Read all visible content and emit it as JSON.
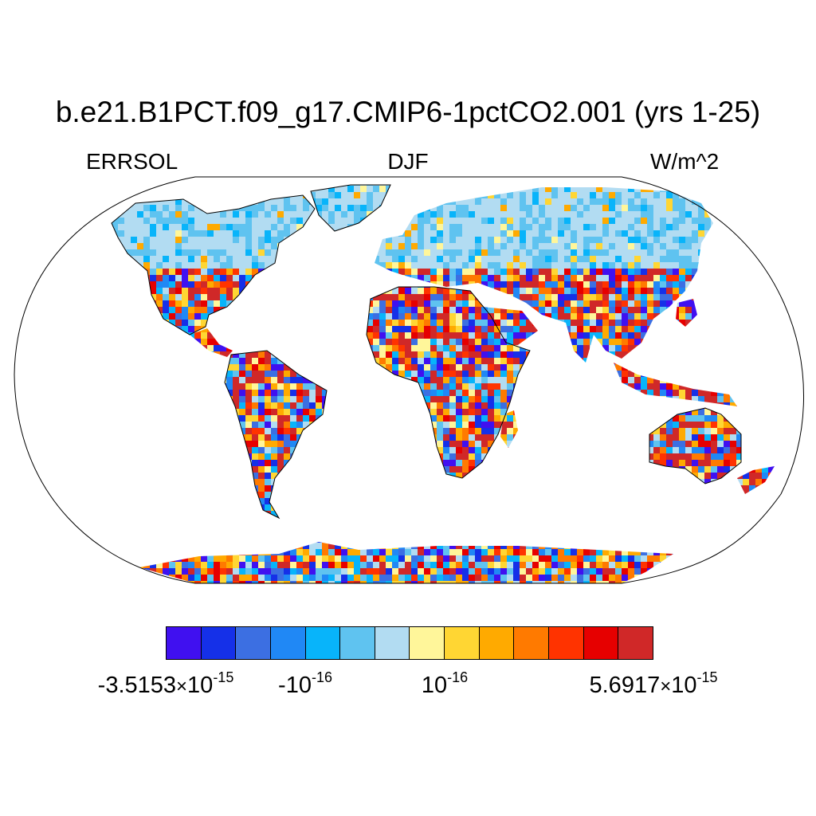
{
  "title": "b.e21.B1PCT.f09_g17.CMIP6-1pctCO2.001 (yrs 1-25)",
  "left_label": "ERRSOL",
  "center_label": "DJF",
  "right_label": "W/m^2",
  "projection": "Robinson",
  "ocean_masked": true,
  "colorbar": {
    "colors": [
      "#4010f0",
      "#1530e8",
      "#3c6fe2",
      "#2088f5",
      "#08b4fa",
      "#5fc3f0",
      "#b2dcf2",
      "#fff69a",
      "#ffd633",
      "#ffaa00",
      "#ff7a00",
      "#ff3300",
      "#e60000",
      "#d02828"
    ],
    "tick_labels": [
      {
        "mantissa": "-3.5153",
        "times": "×",
        "base": "10",
        "exp": "-15"
      },
      {
        "mantissa": "-",
        "times": "",
        "base": "10",
        "exp": "-16"
      },
      {
        "mantissa": "",
        "times": "",
        "base": "10",
        "exp": "-16"
      },
      {
        "mantissa": "5.6917",
        "times": "×",
        "base": "10",
        "exp": "-15"
      }
    ]
  }
}
